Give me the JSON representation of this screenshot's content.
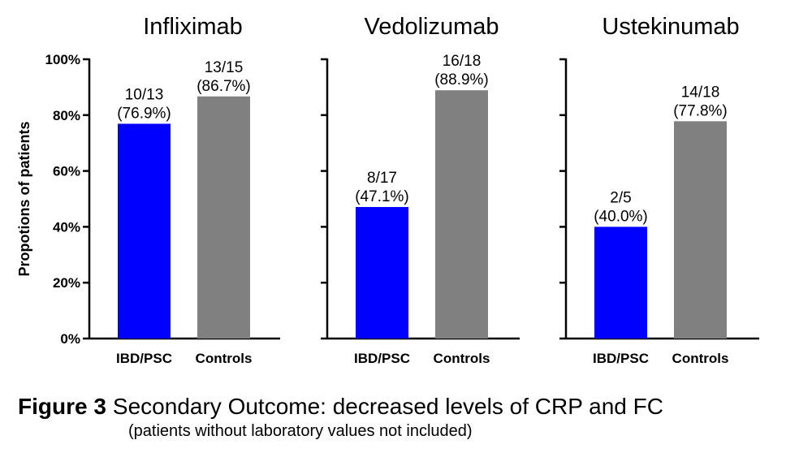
{
  "chart_data": [
    {
      "type": "bar",
      "title": "Infliximab",
      "y_label": "Propotions of patients",
      "categories": [
        "IBD/PSC",
        "Controls"
      ],
      "values": [
        76.9,
        86.7
      ],
      "fractions": [
        "10/13",
        "13/15"
      ],
      "value_labels": [
        "(76.9%)",
        "(86.7%)"
      ],
      "colors": [
        "#0000ff",
        "#808080"
      ],
      "ylim": [
        0,
        100
      ],
      "yticks": [
        {
          "value": 0,
          "label": "0%"
        },
        {
          "value": 20,
          "label": "20%"
        },
        {
          "value": 40,
          "label": "40%"
        },
        {
          "value": 60,
          "label": "60%"
        },
        {
          "value": 80,
          "label": "80%"
        },
        {
          "value": 100,
          "label": "100%"
        }
      ]
    },
    {
      "type": "bar",
      "title": "Vedolizumab",
      "categories": [
        "IBD/PSC",
        "Controls"
      ],
      "values": [
        47.1,
        88.9
      ],
      "fractions": [
        "8/17",
        "16/18"
      ],
      "value_labels": [
        "(47.1%)",
        "(88.9%)"
      ],
      "colors": [
        "#0000ff",
        "#808080"
      ],
      "ylim": [
        0,
        100
      ]
    },
    {
      "type": "bar",
      "title": "Ustekinumab",
      "categories": [
        "IBD/PSC",
        "Controls"
      ],
      "values": [
        40.0,
        77.8
      ],
      "fractions": [
        "2/5",
        "14/18"
      ],
      "value_labels": [
        "(40.0%)",
        "(77.8%)"
      ],
      "colors": [
        "#0000ff",
        "#808080"
      ],
      "ylim": [
        0,
        100
      ]
    }
  ],
  "caption": {
    "label": "Figure 3",
    "text": "Secondary Outcome: decreased levels of CRP and FC",
    "note": "(patients without laboratory values not included)"
  }
}
